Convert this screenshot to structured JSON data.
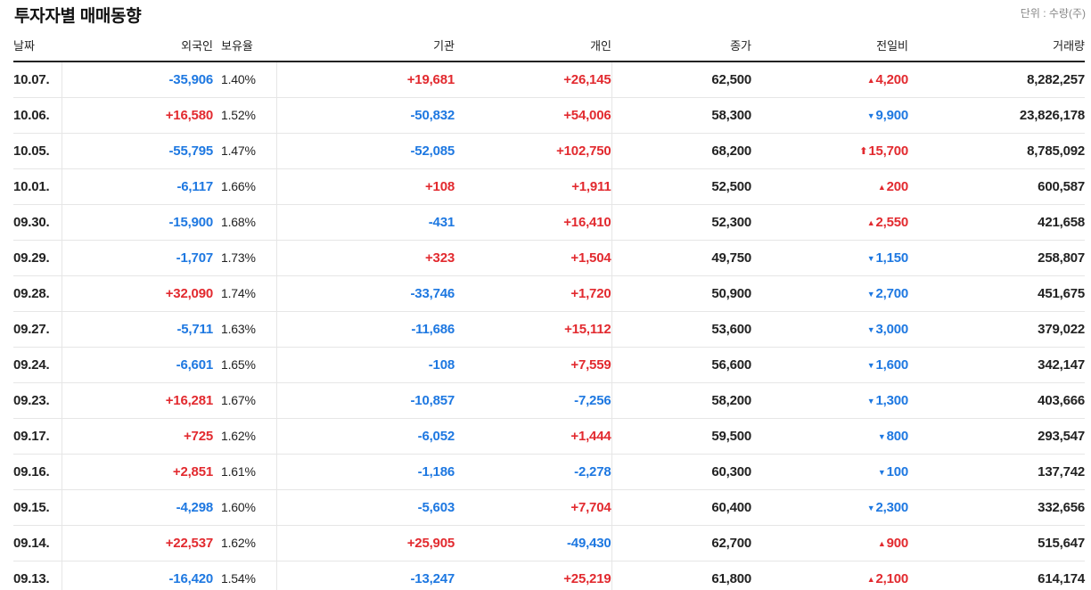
{
  "title": "투자자별 매매동향",
  "unit_note": "단위 : 수량(주)",
  "headers": {
    "date": "날짜",
    "foreign": "외국인",
    "ratio": "보유율",
    "institution": "기관",
    "individual": "개인",
    "close": "종가",
    "change": "전일비",
    "volume": "거래량"
  },
  "colors": {
    "up": "#e22a2f",
    "down": "#1e78e1",
    "text": "#222222",
    "border": "#e6e6e6"
  },
  "rows": [
    {
      "date": "10.07.",
      "foreign": "-35,906",
      "ratio": "1.40%",
      "institution": "+19,681",
      "individual": "+26,145",
      "close": "62,500",
      "change_dir": "up",
      "change": "4,200",
      "volume": "8,282,257"
    },
    {
      "date": "10.06.",
      "foreign": "+16,580",
      "ratio": "1.52%",
      "institution": "-50,832",
      "individual": "+54,006",
      "close": "58,300",
      "change_dir": "down",
      "change": "9,900",
      "volume": "23,826,178"
    },
    {
      "date": "10.05.",
      "foreign": "-55,795",
      "ratio": "1.47%",
      "institution": "-52,085",
      "individual": "+102,750",
      "close": "68,200",
      "change_dir": "limit",
      "change": "15,700",
      "volume": "8,785,092"
    },
    {
      "date": "10.01.",
      "foreign": "-6,117",
      "ratio": "1.66%",
      "institution": "+108",
      "individual": "+1,911",
      "close": "52,500",
      "change_dir": "up",
      "change": "200",
      "volume": "600,587"
    },
    {
      "date": "09.30.",
      "foreign": "-15,900",
      "ratio": "1.68%",
      "institution": "-431",
      "individual": "+16,410",
      "close": "52,300",
      "change_dir": "up",
      "change": "2,550",
      "volume": "421,658"
    },
    {
      "date": "09.29.",
      "foreign": "-1,707",
      "ratio": "1.73%",
      "institution": "+323",
      "individual": "+1,504",
      "close": "49,750",
      "change_dir": "down",
      "change": "1,150",
      "volume": "258,807"
    },
    {
      "date": "09.28.",
      "foreign": "+32,090",
      "ratio": "1.74%",
      "institution": "-33,746",
      "individual": "+1,720",
      "close": "50,900",
      "change_dir": "down",
      "change": "2,700",
      "volume": "451,675"
    },
    {
      "date": "09.27.",
      "foreign": "-5,711",
      "ratio": "1.63%",
      "institution": "-11,686",
      "individual": "+15,112",
      "close": "53,600",
      "change_dir": "down",
      "change": "3,000",
      "volume": "379,022"
    },
    {
      "date": "09.24.",
      "foreign": "-6,601",
      "ratio": "1.65%",
      "institution": "-108",
      "individual": "+7,559",
      "close": "56,600",
      "change_dir": "down",
      "change": "1,600",
      "volume": "342,147"
    },
    {
      "date": "09.23.",
      "foreign": "+16,281",
      "ratio": "1.67%",
      "institution": "-10,857",
      "individual": "-7,256",
      "close": "58,200",
      "change_dir": "down",
      "change": "1,300",
      "volume": "403,666"
    },
    {
      "date": "09.17.",
      "foreign": "+725",
      "ratio": "1.62%",
      "institution": "-6,052",
      "individual": "+1,444",
      "close": "59,500",
      "change_dir": "down",
      "change": "800",
      "volume": "293,547"
    },
    {
      "date": "09.16.",
      "foreign": "+2,851",
      "ratio": "1.61%",
      "institution": "-1,186",
      "individual": "-2,278",
      "close": "60,300",
      "change_dir": "down",
      "change": "100",
      "volume": "137,742"
    },
    {
      "date": "09.15.",
      "foreign": "-4,298",
      "ratio": "1.60%",
      "institution": "-5,603",
      "individual": "+7,704",
      "close": "60,400",
      "change_dir": "down",
      "change": "2,300",
      "volume": "332,656"
    },
    {
      "date": "09.14.",
      "foreign": "+22,537",
      "ratio": "1.62%",
      "institution": "+25,905",
      "individual": "-49,430",
      "close": "62,700",
      "change_dir": "up",
      "change": "900",
      "volume": "515,647"
    },
    {
      "date": "09.13.",
      "foreign": "-16,420",
      "ratio": "1.54%",
      "institution": "-13,247",
      "individual": "+25,219",
      "close": "61,800",
      "change_dir": "up",
      "change": "2,100",
      "volume": "614,174"
    }
  ]
}
